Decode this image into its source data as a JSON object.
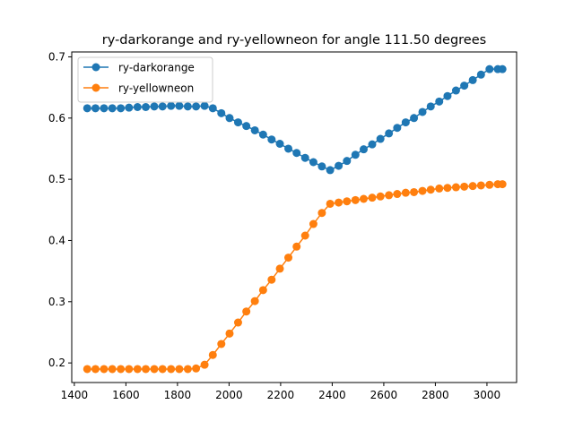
{
  "chart_data": {
    "type": "line",
    "title": "ry-darkorange and ry-yellowneon for angle 111.50 degrees",
    "xlabel": "",
    "ylabel": "",
    "xlim": [
      1390,
      3115
    ],
    "ylim": [
      0.168,
      0.708
    ],
    "xticks": [
      1400,
      1600,
      1800,
      2000,
      2200,
      2400,
      2600,
      2800,
      3000
    ],
    "yticks": [
      0.2,
      0.3,
      0.4,
      0.5,
      0.6,
      0.7
    ],
    "legend_position": "top-left",
    "grid": false,
    "x": [
      1450,
      1482,
      1515,
      1547,
      1580,
      1612,
      1645,
      1677,
      1710,
      1742,
      1775,
      1807,
      1840,
      1872,
      1905,
      1937,
      1970,
      2002,
      2035,
      2067,
      2100,
      2132,
      2165,
      2197,
      2230,
      2262,
      2295,
      2327,
      2360,
      2392,
      2425,
      2457,
      2490,
      2522,
      2555,
      2587,
      2620,
      2652,
      2685,
      2717,
      2750,
      2782,
      2815,
      2847,
      2880,
      2912,
      2945,
      2977,
      3010,
      3042,
      3060
    ],
    "series": [
      {
        "name": "ry-darkorange",
        "color": "#1f77b4",
        "values": [
          0.616,
          0.616,
          0.616,
          0.616,
          0.616,
          0.617,
          0.618,
          0.618,
          0.619,
          0.619,
          0.62,
          0.62,
          0.619,
          0.619,
          0.62,
          0.616,
          0.608,
          0.6,
          0.593,
          0.587,
          0.58,
          0.573,
          0.565,
          0.558,
          0.55,
          0.543,
          0.535,
          0.528,
          0.521,
          0.515,
          0.522,
          0.53,
          0.54,
          0.549,
          0.557,
          0.566,
          0.575,
          0.584,
          0.593,
          0.6,
          0.61,
          0.619,
          0.627,
          0.636,
          0.645,
          0.653,
          0.662,
          0.671,
          0.68,
          0.68,
          0.68
        ]
      },
      {
        "name": "ry-yellowneon",
        "color": "#ff7f0e",
        "values": [
          0.19,
          0.19,
          0.19,
          0.19,
          0.19,
          0.19,
          0.19,
          0.19,
          0.19,
          0.19,
          0.19,
          0.19,
          0.19,
          0.191,
          0.197,
          0.213,
          0.231,
          0.248,
          0.266,
          0.284,
          0.301,
          0.319,
          0.336,
          0.354,
          0.372,
          0.39,
          0.408,
          0.427,
          0.445,
          0.46,
          0.462,
          0.464,
          0.466,
          0.468,
          0.47,
          0.472,
          0.474,
          0.476,
          0.478,
          0.479,
          0.481,
          0.483,
          0.485,
          0.486,
          0.487,
          0.488,
          0.489,
          0.49,
          0.491,
          0.492,
          0.492
        ]
      }
    ]
  }
}
